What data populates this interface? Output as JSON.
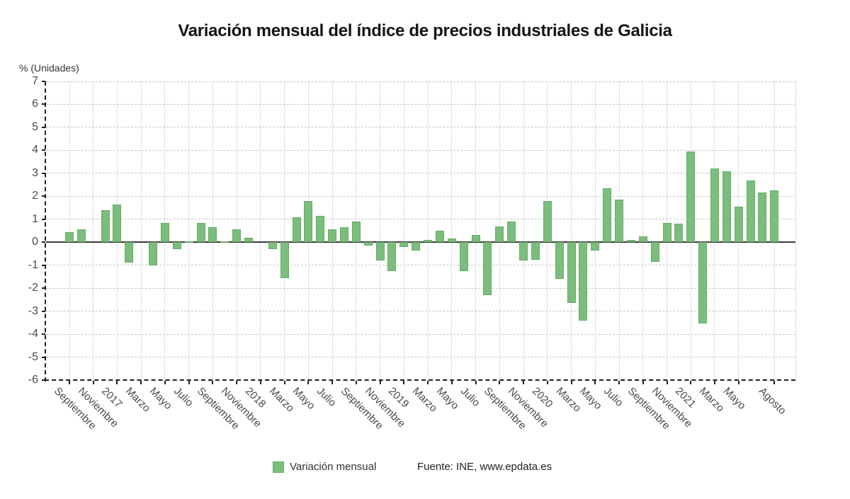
{
  "title": "Variación mensual del índice de precios industriales de Galicia",
  "y_axis_unit_label": "% (Unidades)",
  "legend": {
    "label": "Variación mensual"
  },
  "source": "Fuente: INE, www.epdata.es",
  "colors": {
    "bar_fill": "#7cbd7d",
    "bar_border": "#66ab68",
    "grid": "#c9c9c9",
    "axis": "#1f1f1f",
    "zero_line": "#3a3a3a",
    "tick_text": "#4a4a4a",
    "title_text": "#141414"
  },
  "chart_data": {
    "type": "bar",
    "title": "Variación mensual del índice de precios industriales de Galicia",
    "xlabel": "",
    "ylabel": "% (Unidades)",
    "ylim": [
      -6,
      7
    ],
    "yticks": [
      7,
      6,
      5,
      4,
      3,
      2,
      1,
      0,
      -1,
      -2,
      -3,
      -4,
      -5,
      -6
    ],
    "grid": true,
    "legend_position": "bottom",
    "series_name": "Variación mensual",
    "values": [
      0.45,
      0.55,
      0.0,
      1.4,
      1.65,
      -0.9,
      0.0,
      -1.0,
      0.85,
      -0.3,
      0.05,
      0.85,
      0.65,
      0.05,
      0.55,
      0.2,
      0.0,
      -0.3,
      -1.55,
      1.1,
      1.8,
      1.15,
      0.55,
      0.65,
      0.9,
      -0.15,
      -0.8,
      -1.25,
      -0.2,
      -0.35,
      0.1,
      0.5,
      0.15,
      -1.25,
      0.3,
      -2.3,
      0.7,
      0.9,
      -0.8,
      -0.75,
      1.8,
      -1.6,
      -2.65,
      -3.4,
      -0.35,
      2.35,
      1.85,
      0.1,
      0.25,
      -0.85,
      0.85,
      0.8,
      3.95,
      -3.55,
      3.2,
      3.1,
      1.55,
      2.7,
      2.15,
      2.25
    ],
    "x_tick_labels": [
      {
        "index": 0,
        "label": "Septiembre"
      },
      {
        "index": 2,
        "label": "Noviembre"
      },
      {
        "index": 4,
        "label": "2017"
      },
      {
        "index": 6,
        "label": "Marzo"
      },
      {
        "index": 8,
        "label": "Mayo"
      },
      {
        "index": 10,
        "label": "Julio"
      },
      {
        "index": 12,
        "label": "Septiembre"
      },
      {
        "index": 14,
        "label": "Noviembre"
      },
      {
        "index": 16,
        "label": "2018"
      },
      {
        "index": 18,
        "label": "Marzo"
      },
      {
        "index": 20,
        "label": "Mayo"
      },
      {
        "index": 22,
        "label": "Julio"
      },
      {
        "index": 24,
        "label": "Septiembre"
      },
      {
        "index": 26,
        "label": "Noviembre"
      },
      {
        "index": 28,
        "label": "2019"
      },
      {
        "index": 30,
        "label": "Marzo"
      },
      {
        "index": 32,
        "label": "Mayo"
      },
      {
        "index": 34,
        "label": "Julio"
      },
      {
        "index": 36,
        "label": "Septiembre"
      },
      {
        "index": 38,
        "label": "Noviembre"
      },
      {
        "index": 40,
        "label": "2020"
      },
      {
        "index": 42,
        "label": "Marzo"
      },
      {
        "index": 44,
        "label": "Mayo"
      },
      {
        "index": 46,
        "label": "Julio"
      },
      {
        "index": 48,
        "label": "Septiembre"
      },
      {
        "index": 50,
        "label": "Noviembre"
      },
      {
        "index": 52,
        "label": "2021"
      },
      {
        "index": 54,
        "label": "Marzo"
      },
      {
        "index": 56,
        "label": "Mayo"
      },
      {
        "index": 59,
        "label": "Agosto"
      }
    ]
  }
}
